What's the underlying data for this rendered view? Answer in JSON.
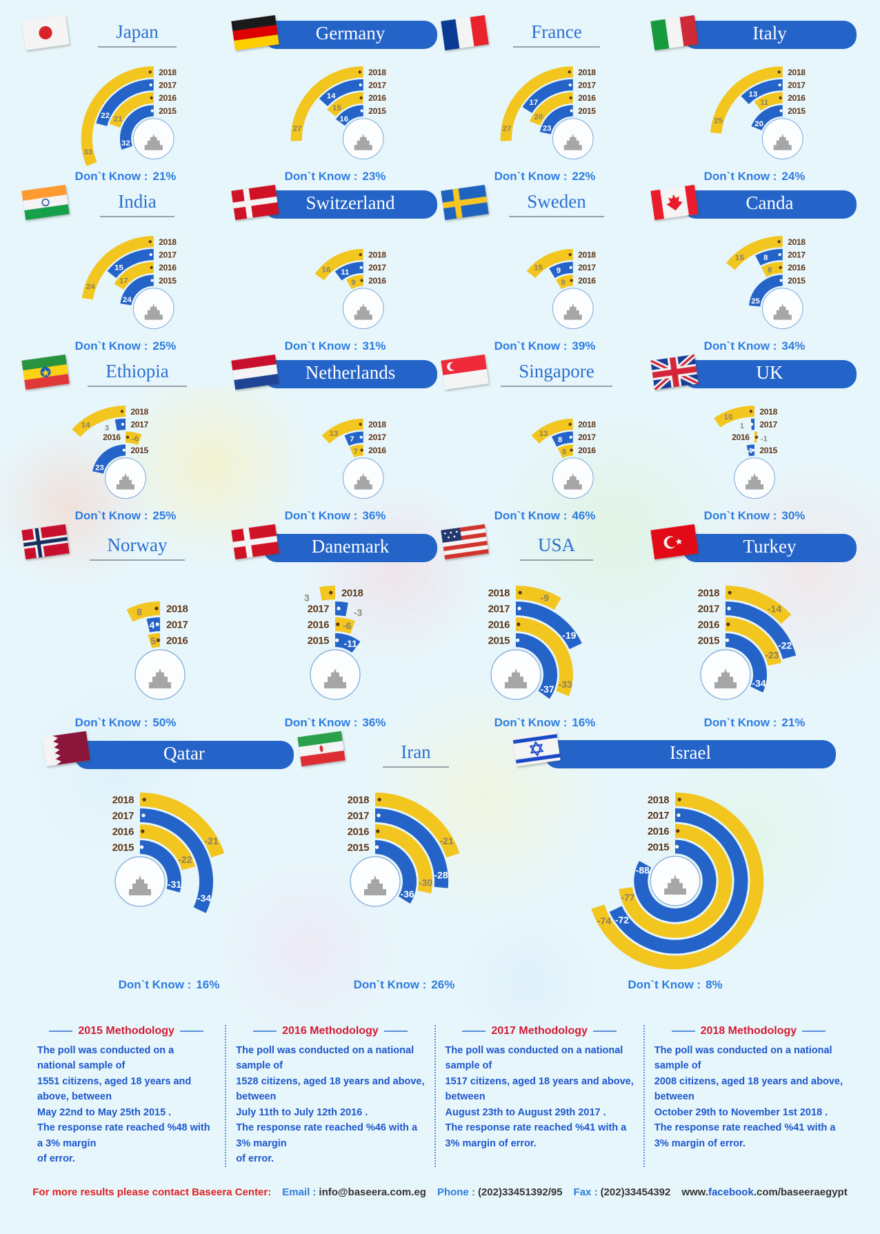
{
  "colors": {
    "background": "#e7f6fb",
    "arc_yellow": "#f2c51f",
    "arc_blue": "#2463c8",
    "year_text": "#5a3517",
    "value_on_yellow": "#8b7f63",
    "value_on_blue": "#ffffff",
    "value_outside": "#8f8878",
    "dont_know": "#2e7ce0",
    "pill": "#2463c8",
    "title_text": "#2a6fd2",
    "method_red": "#d41a32",
    "method_blue": "#1c57cc",
    "footer_red": "#e02222"
  },
  "dk_label": "Don`t Know :",
  "chart_data": {
    "type": "radial-bar-multiples",
    "years": [
      "2018",
      "2017",
      "2016",
      "2015"
    ],
    "year_colors": {
      "2018": "#f2c51f",
      "2017": "#2463c8",
      "2016": "#f2c51f",
      "2015": "#2463c8"
    },
    "note": "Each country is a concentric radial bar chart; positive values sweep left, negative values sweep right; angle ~3.4 degrees per unit.",
    "series": [
      {
        "name": "Japan",
        "flag": "japan",
        "landmark": "temple",
        "title_style": "line",
        "dont_know": "21%",
        "values": {
          "2018": 33,
          "2017": 22,
          "2016": 21,
          "2015": 32
        }
      },
      {
        "name": "Germany",
        "flag": "germany",
        "landmark": "brandenburg-gate",
        "title_style": "pill",
        "dont_know": "23%",
        "values": {
          "2018": 27,
          "2017": 14,
          "2016": 15,
          "2015": 16
        }
      },
      {
        "name": "France",
        "flag": "france",
        "landmark": "eiffel-tower",
        "title_style": "line",
        "dont_know": "22%",
        "values": {
          "2018": 27,
          "2017": 17,
          "2016": 20,
          "2015": 23
        }
      },
      {
        "name": "Italy",
        "flag": "italy",
        "landmark": "st-peters-basilica",
        "title_style": "pill",
        "dont_know": "24%",
        "values": {
          "2018": 25,
          "2017": 13,
          "2016": 11,
          "2015": 20
        }
      },
      {
        "name": "India",
        "flag": "india",
        "landmark": "elephant",
        "title_style": "line",
        "dont_know": "25%",
        "values": {
          "2018": 24,
          "2017": 15,
          "2016": 17,
          "2015": 24
        }
      },
      {
        "name": "Switzerland",
        "flag": "nordic-red",
        "landmark": "matterhorn",
        "title_style": "pill",
        "dont_know": "31%",
        "values": {
          "2018": 16,
          "2017": 11,
          "2016": 9
        }
      },
      {
        "name": "Sweden",
        "flag": "sweden",
        "landmark": "three-crowns",
        "title_style": "line",
        "dont_know": "39%",
        "values": {
          "2018": 15,
          "2017": 9,
          "2016": 9
        }
      },
      {
        "name": "Canda",
        "flag": "canada",
        "landmark": "totem-poles",
        "title_style": "pill",
        "dont_know": "34%",
        "values": {
          "2018": 15,
          "2017": 8,
          "2016": 8,
          "2015": 25
        }
      },
      {
        "name": "Ethiopia",
        "flag": "ethiopia",
        "landmark": "rock-church",
        "title_style": "line",
        "dont_know": "25%",
        "values": {
          "2018": 14,
          "2017": 3,
          "2016": -6,
          "2015": 23
        }
      },
      {
        "name": "Netherlands",
        "flag": "netherlands",
        "landmark": "lion-statue",
        "title_style": "pill",
        "dont_know": "36%",
        "values": {
          "2018": 13,
          "2017": 7,
          "2016": 7
        }
      },
      {
        "name": "Singapore",
        "flag": "singapore",
        "landmark": "merlion",
        "title_style": "line",
        "dont_know": "46%",
        "values": {
          "2018": 13,
          "2017": 8,
          "2016": 8
        }
      },
      {
        "name": "UK",
        "flag": "uk",
        "landmark": "big-ben",
        "title_style": "pill",
        "dont_know": "30%",
        "values": {
          "2018": 10,
          "2017": 1,
          "2016": -1,
          "2015": 4
        }
      },
      {
        "name": "Norway",
        "flag": "norway",
        "landmark": "rosemaling",
        "title_style": "line",
        "dont_know": "50%",
        "values": {
          "2018": 8,
          "2017": 4,
          "2016": 5
        }
      },
      {
        "name": "Danemark",
        "flag": "nordic-red",
        "landmark": "coat-of-arms",
        "title_style": "pill",
        "dont_know": "36%",
        "values": {
          "2018": 3,
          "2017": -3,
          "2016": -6,
          "2015": -11
        }
      },
      {
        "name": "USA",
        "flag": "usa",
        "landmark": "statue-of-liberty",
        "title_style": "line",
        "dont_know": "16%",
        "values": {
          "2018": -9,
          "2017": -19,
          "2016": -33,
          "2015": -37
        }
      },
      {
        "name": "Turkey",
        "flag": "turkey",
        "landmark": "blue-mosque",
        "title_style": "pill",
        "dont_know": "21%",
        "values": {
          "2018": -14,
          "2017": -22,
          "2016": -23,
          "2015": -34
        }
      },
      {
        "name": "Qatar",
        "flag": "qatar",
        "landmark": "barzan-tower",
        "title_style": "pill",
        "dont_know": "16%",
        "values": {
          "2018": -21,
          "2017": -34,
          "2016": -22,
          "2015": -31
        }
      },
      {
        "name": "Iran",
        "flag": "iran",
        "landmark": "milad-tower",
        "title_style": "line",
        "dont_know": "26%",
        "values": {
          "2018": -21,
          "2017": -28,
          "2016": -30,
          "2015": -36
        }
      },
      {
        "name": "Israel",
        "flag": "israel",
        "landmark": "menorah",
        "title_style": "pill",
        "dont_know": "8%",
        "values": {
          "2018": -74,
          "2017": -72,
          "2016": -77,
          "2015": -88
        }
      }
    ]
  },
  "methodology": [
    {
      "title": "2015 Methodology",
      "lines": [
        "The poll was conducted on a",
        "national sample of",
        "1551 citizens, aged 18 years and",
        "above, between",
        "May 22nd to May 25th 2015 .",
        "The response rate reached %48 with",
        "a 3% margin",
        "of error."
      ]
    },
    {
      "title": "2016 Methodology",
      "lines": [
        "The poll was conducted on a national",
        "sample of",
        "1528 citizens, aged 18 years and above,",
        "between",
        "July 11th to July  12th 2016 .",
        "The response rate reached %46 with a",
        "3% margin",
        "of error."
      ]
    },
    {
      "title": "2017 Methodology",
      "lines": [
        "The poll was conducted on a national",
        "sample of",
        "1517 citizens, aged 18 years and above,",
        "between",
        "August 23th to August  29th 2017 .",
        "The response rate reached %41 with a",
        "3% margin of error."
      ]
    },
    {
      "title": "2018 Methodology",
      "lines": [
        "The poll was conducted on a national",
        "sample of",
        "2008 citizens, aged 18 years and above,",
        "between",
        "October 29th to November  1st 2018 .",
        "The response rate reached %41 with a",
        "3% margin of error."
      ]
    }
  ],
  "footer": {
    "contact": "For more results please contact Baseera Center:",
    "email_label": "Email :",
    "email": "info@baseera.com.eg",
    "phone_label": "Phone :",
    "phone": "(202)33451392/95",
    "fax_label": "Fax :",
    "fax": "(202)33454392",
    "site_pre": "www.",
    "site_fb": "facebook",
    "site_post": ".com/baseeraegypt"
  }
}
